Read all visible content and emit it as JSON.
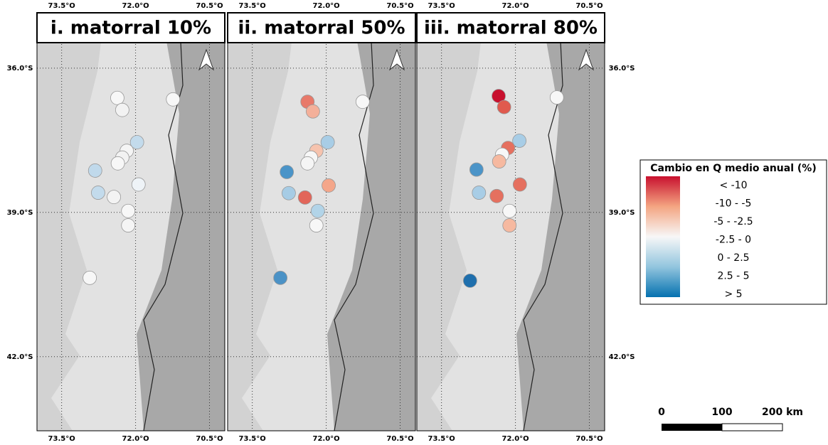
{
  "axes": {
    "xlim": [
      74.0,
      70.19
    ],
    "ylim": [
      34.85,
      43.54
    ],
    "xticks": [
      {
        "value": 73.5,
        "label": "73.5°O"
      },
      {
        "value": 72.0,
        "label": "72.0°O"
      },
      {
        "value": 70.5,
        "label": "70.5°O"
      }
    ],
    "yticks": [
      {
        "value": 36.0,
        "label": "36.0°S"
      },
      {
        "value": 39.0,
        "label": "39.0°S"
      },
      {
        "value": 42.0,
        "label": "42.0°S"
      }
    ]
  },
  "panels": [
    {
      "title": "i. matorral 10%",
      "points": [
        {
          "lon": 72.37,
          "lat": 36.62,
          "color": "#f7f7f7"
        },
        {
          "lon": 72.27,
          "lat": 36.87,
          "color": "#f2f2f2"
        },
        {
          "lon": 71.24,
          "lat": 36.65,
          "color": "#f7f7f7"
        },
        {
          "lon": 71.97,
          "lat": 37.54,
          "color": "#c3dbec"
        },
        {
          "lon": 72.18,
          "lat": 37.72,
          "color": "#f5f5f5"
        },
        {
          "lon": 72.27,
          "lat": 37.86,
          "color": "#f2f2f2"
        },
        {
          "lon": 72.36,
          "lat": 37.98,
          "color": "#f7f7f7"
        },
        {
          "lon": 72.82,
          "lat": 38.13,
          "color": "#c0d9eb"
        },
        {
          "lon": 71.94,
          "lat": 38.42,
          "color": "#eef3f7"
        },
        {
          "lon": 72.76,
          "lat": 38.59,
          "color": "#c3dbec"
        },
        {
          "lon": 72.44,
          "lat": 38.68,
          "color": "#f3f3f3"
        },
        {
          "lon": 72.15,
          "lat": 38.97,
          "color": "#f7f7f7"
        },
        {
          "lon": 72.15,
          "lat": 39.27,
          "color": "#f5f5f5"
        },
        {
          "lon": 72.93,
          "lat": 40.36,
          "color": "#f7f7f7"
        }
      ]
    },
    {
      "title": "ii. matorral 50%",
      "points": [
        {
          "lon": 72.38,
          "lat": 36.7,
          "color": "#e8796a"
        },
        {
          "lon": 72.27,
          "lat": 36.9,
          "color": "#f4b09a"
        },
        {
          "lon": 71.26,
          "lat": 36.7,
          "color": "#f7f7f7"
        },
        {
          "lon": 71.97,
          "lat": 37.54,
          "color": "#a8cde6"
        },
        {
          "lon": 72.2,
          "lat": 37.72,
          "color": "#f6c3ae"
        },
        {
          "lon": 72.31,
          "lat": 37.86,
          "color": "#f7f7f7"
        },
        {
          "lon": 72.38,
          "lat": 37.98,
          "color": "#f5f5f5"
        },
        {
          "lon": 72.8,
          "lat": 38.16,
          "color": "#4a94c8"
        },
        {
          "lon": 71.95,
          "lat": 38.44,
          "color": "#f4a68a"
        },
        {
          "lon": 72.76,
          "lat": 38.6,
          "color": "#a6cce5"
        },
        {
          "lon": 72.43,
          "lat": 38.69,
          "color": "#e2665a"
        },
        {
          "lon": 72.17,
          "lat": 38.97,
          "color": "#b2d4e8"
        },
        {
          "lon": 72.2,
          "lat": 39.27,
          "color": "#f7f7f7"
        },
        {
          "lon": 72.93,
          "lat": 40.36,
          "color": "#4b92c6"
        }
      ]
    },
    {
      "title": "iii. matorral 80%",
      "points": [
        {
          "lon": 72.34,
          "lat": 36.58,
          "color": "#c8102e"
        },
        {
          "lon": 72.23,
          "lat": 36.81,
          "color": "#e05a4e"
        },
        {
          "lon": 71.16,
          "lat": 36.61,
          "color": "#f7f7f7"
        },
        {
          "lon": 71.92,
          "lat": 37.51,
          "color": "#a8cde6"
        },
        {
          "lon": 72.15,
          "lat": 37.66,
          "color": "#e5705f"
        },
        {
          "lon": 72.27,
          "lat": 37.8,
          "color": "#f7f7f7"
        },
        {
          "lon": 72.33,
          "lat": 37.94,
          "color": "#f6b9a0"
        },
        {
          "lon": 72.79,
          "lat": 38.11,
          "color": "#4b94c8"
        },
        {
          "lon": 71.91,
          "lat": 38.42,
          "color": "#e5705f"
        },
        {
          "lon": 72.74,
          "lat": 38.59,
          "color": "#a8cde6"
        },
        {
          "lon": 72.38,
          "lat": 38.66,
          "color": "#e5705f"
        },
        {
          "lon": 72.12,
          "lat": 38.97,
          "color": "#f7f7f7"
        },
        {
          "lon": 72.12,
          "lat": 39.27,
          "color": "#f6b9a0"
        },
        {
          "lon": 72.92,
          "lat": 40.42,
          "color": "#1f6fad"
        }
      ]
    }
  ],
  "legend": {
    "title": "Cambio en Q medio anual (%)",
    "entries": [
      "< -10",
      "-10 - -5",
      "-5 - -2.5",
      "-2.5 - 0",
      "0 - 2.5",
      "2.5 - 5",
      "> 5"
    ],
    "colors": [
      "#c8102e",
      "#f4a582",
      "#f7f7f7",
      "#92c5de",
      "#0571b0"
    ]
  },
  "scale_bar": {
    "ticks": [
      0,
      100,
      {
        "value": 200,
        "label": "200 km"
      }
    ]
  }
}
